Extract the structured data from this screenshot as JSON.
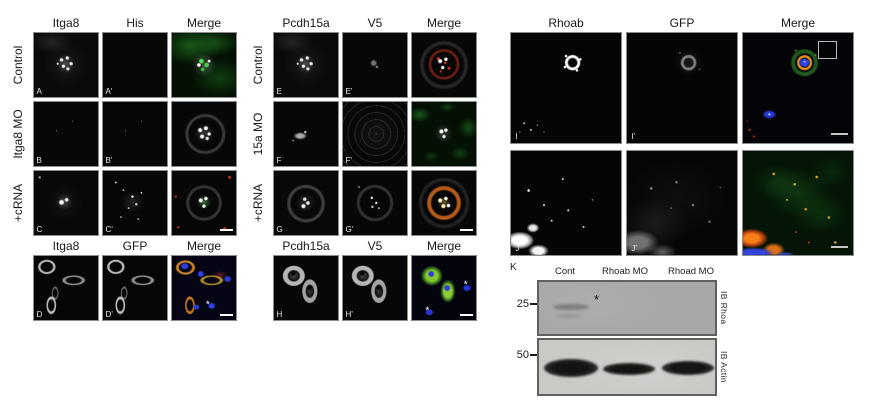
{
  "colors": {
    "fluor_green": "#2fbb2f",
    "fluor_red": "#cf3222",
    "fluor_orange": "#e8911c",
    "fluor_blue": "#2d3fe0",
    "blot_bg_rhoa": "#a8a8a6",
    "blot_bg_actin": "#c9c9c6"
  },
  "blocks": [
    {
      "id": "itga8",
      "sections": [
        {
          "columns": [
            "Itga8",
            "His",
            "Merge"
          ],
          "rows": [
            {
              "label": "Control",
              "panels": [
                {
                  "letter": "A",
                  "scene": "sc-rosette-a"
                },
                {
                  "letter": "A'",
                  "scene": "sc-dark"
                },
                {
                  "scene": "mg-green-rosette"
                }
              ]
            },
            {
              "label": "Itga8 MO",
              "panels": [
                {
                  "letter": "B",
                  "scene": "sc-dark-speck"
                },
                {
                  "letter": "B'",
                  "scene": "sc-dark-speck"
                },
                {
                  "scene": "mg-white-rosette"
                }
              ]
            },
            {
              "label": "+cRNA",
              "panels": [
                {
                  "letter": "C",
                  "scene": "sc-rosette-small"
                },
                {
                  "letter": "C'",
                  "scene": "sc-speckles"
                },
                {
                  "scene": "mg-crna",
                  "scalebar": true
                }
              ]
            }
          ]
        },
        {
          "columns": [
            "Itga8",
            "GFP",
            "Merge"
          ],
          "rows": [
            {
              "label": "",
              "panels": [
                {
                  "letter": "D",
                  "scene": "sc-cells-gray"
                },
                {
                  "letter": "D'",
                  "scene": "sc-cells-gray"
                },
                {
                  "scene": "mg-cells-orange",
                  "scalebar": true,
                  "asterisks": [
                    [
                      56,
                      76
                    ]
                  ]
                }
              ]
            }
          ]
        }
      ]
    },
    {
      "id": "pcdh15a",
      "sections": [
        {
          "columns": [
            "Pcdh15a",
            "V5",
            "Merge"
          ],
          "rows": [
            {
              "label": "Control",
              "panels": [
                {
                  "letter": "E",
                  "scene": "sc-rosette-a"
                },
                {
                  "letter": "E'",
                  "scene": "sc-dim-center"
                },
                {
                  "scene": "mg-red-rosette"
                }
              ]
            },
            {
              "label": "15a MO",
              "panels": [
                {
                  "letter": "F",
                  "scene": "sc-smudge"
                },
                {
                  "letter": "F'",
                  "scene": "sc-web"
                },
                {
                  "scene": "mg-green-field"
                }
              ]
            },
            {
              "label": "+cRNA",
              "panels": [
                {
                  "letter": "G",
                  "scene": "sc-rosette-ring"
                },
                {
                  "letter": "G'",
                  "scene": "sc-speckles-ring"
                },
                {
                  "scene": "mg-orange-rosette",
                  "scalebar": true
                }
              ]
            }
          ]
        },
        {
          "columns": [
            "Pcdh15a",
            "V5",
            "Merge"
          ],
          "rows": [
            {
              "label": "",
              "panels": [
                {
                  "letter": "H",
                  "scene": "sc-cells-gray2"
                },
                {
                  "letter": "H'",
                  "scene": "sc-cells-gray2"
                },
                {
                  "scene": "mg-cells-green",
                  "scalebar": true,
                  "asterisks": [
                    [
                      84,
                      46
                    ],
                    [
                      24,
                      86
                    ]
                  ]
                }
              ]
            }
          ]
        }
      ]
    },
    {
      "id": "rhoab",
      "sections": [
        {
          "columns": [
            "Rhoab",
            "GFP",
            "Merge"
          ],
          "rows": [
            {
              "label": "",
              "panels": [
                {
                  "letter": "I",
                  "scene": "sc-ring-bright"
                },
                {
                  "letter": "I'",
                  "scene": "sc-ring-dim"
                },
                {
                  "scene": "mg-ring",
                  "scalebar": true,
                  "inset": true
                }
              ]
            },
            {
              "label": "",
              "panels": [
                {
                  "letter": "J",
                  "scene": "sc-clumps-bright"
                },
                {
                  "letter": "J'",
                  "scene": "sc-clumps-dim"
                },
                {
                  "scene": "mg-field-green",
                  "scalebar": true
                }
              ]
            }
          ]
        }
      ]
    }
  ],
  "blot": {
    "panel_letter": "K",
    "lanes": [
      "Cont",
      "Rhoab MO",
      "Rhoad MO"
    ],
    "mw_markers": [
      "25",
      "50"
    ],
    "ib_labels": [
      "IB Rhoa",
      "IB Actin"
    ],
    "asterisk": "*"
  }
}
